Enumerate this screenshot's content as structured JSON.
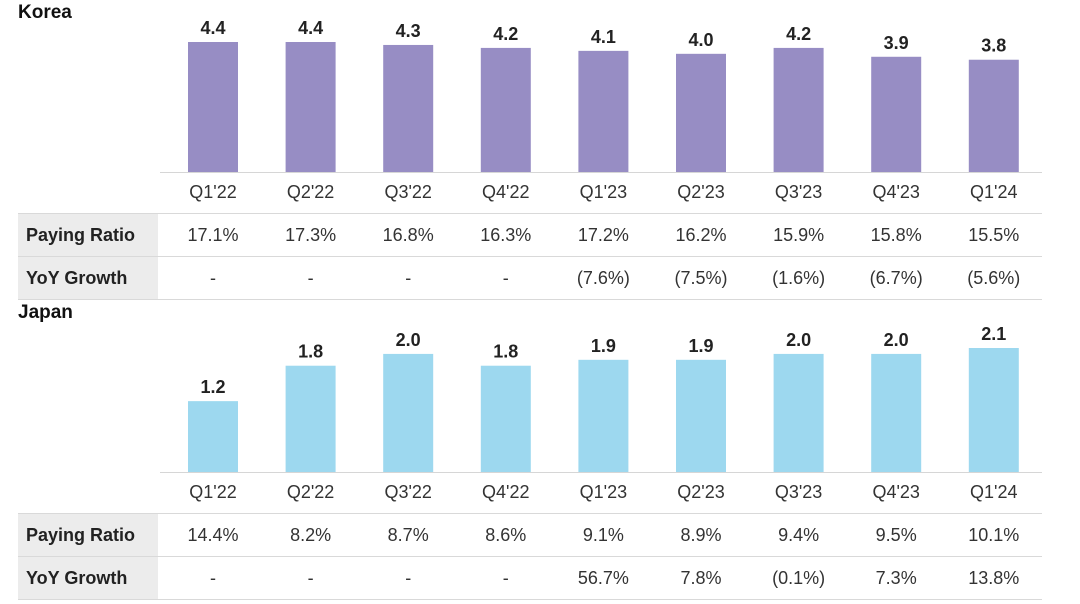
{
  "chart_data": [
    {
      "type": "bar",
      "title": "Korea",
      "categories": [
        "Q1'22",
        "Q2'22",
        "Q3'22",
        "Q4'22",
        "Q1'23",
        "Q2'23",
        "Q3'23",
        "Q4'23",
        "Q1'24"
      ],
      "values": [
        4.4,
        4.4,
        4.3,
        4.2,
        4.1,
        4.0,
        4.2,
        3.9,
        3.8
      ],
      "value_labels": [
        "4.4",
        "4.4",
        "4.3",
        "4.2",
        "4.1",
        "4.0",
        "4.2",
        "3.9",
        "3.8"
      ],
      "ylim": [
        0,
        4.4
      ],
      "color": "#978dc4",
      "grid": false,
      "table": {
        "rows": [
          {
            "label": "Paying Ratio",
            "cells": [
              "17.1%",
              "17.3%",
              "16.8%",
              "16.3%",
              "17.2%",
              "16.2%",
              "15.9%",
              "15.8%",
              "15.5%"
            ]
          },
          {
            "label": "YoY Growth",
            "cells": [
              "-",
              "-",
              "-",
              "-",
              "(7.6%)",
              "(7.5%)",
              "(1.6%)",
              "(6.7%)",
              "(5.6%)"
            ]
          }
        ]
      }
    },
    {
      "type": "bar",
      "title": "Japan",
      "categories": [
        "Q1'22",
        "Q2'22",
        "Q3'22",
        "Q4'22",
        "Q1'23",
        "Q2'23",
        "Q3'23",
        "Q4'23",
        "Q1'24"
      ],
      "values": [
        1.2,
        1.8,
        2.0,
        1.8,
        1.9,
        1.9,
        2.0,
        2.0,
        2.1
      ],
      "value_labels": [
        "1.2",
        "1.8",
        "2.0",
        "1.8",
        "1.9",
        "1.9",
        "2.0",
        "2.0",
        "2.1"
      ],
      "ylim": [
        0,
        2.1
      ],
      "color": "#9dd8ef",
      "grid": false,
      "table": {
        "rows": [
          {
            "label": "Paying Ratio",
            "cells": [
              "14.4%",
              "8.2%",
              "8.7%",
              "8.6%",
              "9.1%",
              "8.9%",
              "9.4%",
              "9.5%",
              "10.1%"
            ]
          },
          {
            "label": "YoY Growth",
            "cells": [
              "-",
              "-",
              "-",
              "-",
              "56.7%",
              "7.8%",
              "(0.1%)",
              "7.3%",
              "13.8%"
            ]
          }
        ]
      }
    }
  ]
}
